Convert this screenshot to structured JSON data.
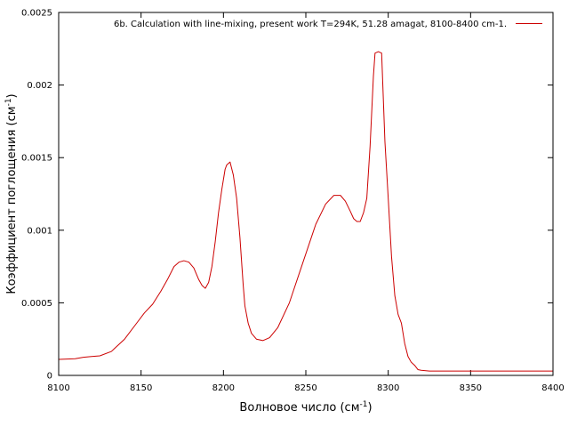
{
  "chart_data": {
    "type": "line",
    "title": "",
    "xlabel": "Волновое число (см",
    "xlabel_sup": "-1",
    "xlabel_end": ")",
    "ylabel": "Коэффициент поглощения (см",
    "ylabel_sup": "-1",
    "ylabel_end": ")",
    "xlim": [
      8100,
      8400
    ],
    "ylim": [
      0,
      0.0025
    ],
    "x_ticks": [
      8100,
      8150,
      8200,
      8250,
      8300,
      8350,
      8400
    ],
    "y_ticks": [
      0,
      0.0005,
      0.001,
      0.0015,
      0.002,
      0.0025
    ],
    "x_tick_labels": [
      "8100",
      "8150",
      "8200",
      "8250",
      "8300",
      "8350",
      "8400"
    ],
    "y_tick_labels": [
      "0",
      "0.0005",
      "0.001",
      "0.0015",
      "0.002",
      "0.0025"
    ],
    "grid": false,
    "legend_position": "top-right",
    "series": [
      {
        "name": "6b. Calculation with line-mixing, present work T=294K, 51.28 amagat, 8100-8400 cm-1.",
        "color": "#cc0000",
        "x": [
          8100,
          8110,
          8115,
          8120,
          8125,
          8132,
          8140,
          8148,
          8152,
          8157,
          8162,
          8166,
          8170,
          8173,
          8176,
          8179,
          8182,
          8185,
          8187,
          8189,
          8191,
          8193,
          8195,
          8197,
          8199,
          8201,
          8202,
          8204,
          8206,
          8208,
          8210,
          8212,
          8213,
          8215,
          8217,
          8220,
          8224,
          8228,
          8233,
          8240,
          8248,
          8256,
          8262,
          8267,
          8271,
          8274,
          8277,
          8279,
          8281,
          8283,
          8285,
          8287,
          8289,
          8291,
          8292,
          8294,
          8296,
          8298,
          8300,
          8302,
          8304,
          8306,
          8308,
          8310,
          8312,
          8314,
          8316,
          8318,
          8320,
          8325,
          8332,
          8340,
          8350,
          8360,
          8370,
          8380,
          8390,
          8400
        ],
        "y": [
          0.00011,
          0.000115,
          0.000125,
          0.00013,
          0.000135,
          0.000165,
          0.00025,
          0.00037,
          0.00043,
          0.00049,
          0.00058,
          0.00066,
          0.00075,
          0.00078,
          0.00079,
          0.00078,
          0.00074,
          0.00066,
          0.00062,
          0.0006,
          0.00064,
          0.00075,
          0.00092,
          0.00112,
          0.00128,
          0.00142,
          0.00145,
          0.00147,
          0.00138,
          0.00122,
          0.00095,
          0.00062,
          0.00048,
          0.00036,
          0.00029,
          0.00025,
          0.00024,
          0.00026,
          0.00033,
          0.0005,
          0.00077,
          0.00104,
          0.00118,
          0.00124,
          0.00124,
          0.0012,
          0.00113,
          0.00108,
          0.00106,
          0.00106,
          0.00112,
          0.00122,
          0.00158,
          0.00206,
          0.00222,
          0.00223,
          0.00222,
          0.00161,
          0.00122,
          0.00082,
          0.00055,
          0.00042,
          0.00036,
          0.00022,
          0.00013,
          9e-05,
          7e-05,
          4e-05,
          3.5e-05,
          3e-05,
          3e-05,
          3e-05,
          3e-05,
          3e-05,
          3e-05,
          3e-05,
          3e-05,
          3e-05
        ]
      }
    ]
  }
}
